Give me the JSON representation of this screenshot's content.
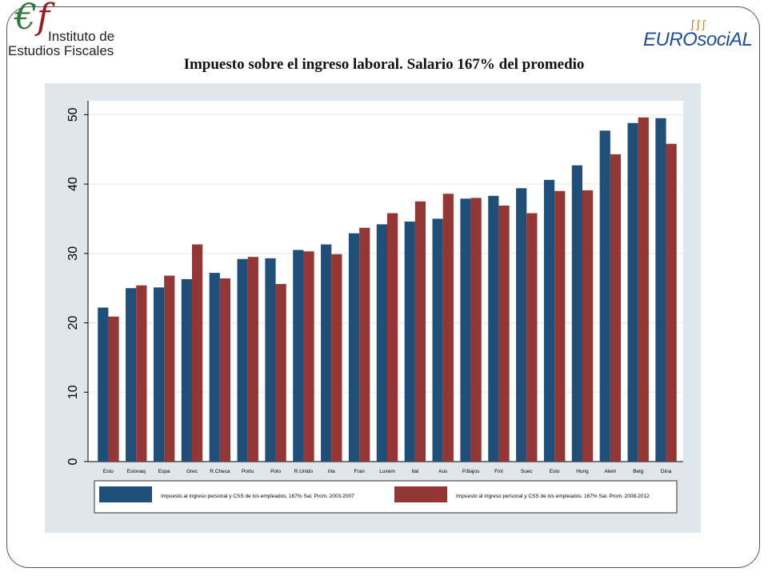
{
  "header": {
    "org_logo_text": [
      "Instituto de",
      "Estudios Fiscales"
    ],
    "partner_logo_text": "EUROsociAL"
  },
  "chart_data": {
    "type": "bar",
    "title": "Impuesto sobre el ingreso laboral. Salario 167% del promedio",
    "xlabel": "",
    "ylabel": "",
    "ylim": [
      0,
      52
    ],
    "yticks": [
      0,
      10,
      20,
      30,
      40,
      50
    ],
    "grid": true,
    "legend_position": "bottom",
    "categories": [
      "Esto",
      "Eslovaq",
      "Espa",
      "Grec",
      "R.Checa",
      "Portu",
      "Polo",
      "R.Unido",
      "Irla",
      "Fran",
      "Luxem",
      "Ital",
      "Aus",
      "P.Bajos",
      "Finl",
      "Suec",
      "Eslo",
      "Hung",
      "Alem",
      "Belg",
      "Dina"
    ],
    "series": [
      {
        "name": "Impuesto al ingreso personal y CSS de los empleados. 167% Sal. Prom. 2003-2007",
        "color": "#1f4e79",
        "values": [
          22.2,
          25.0,
          25.1,
          26.3,
          27.2,
          29.2,
          29.3,
          30.5,
          31.3,
          32.9,
          34.2,
          34.6,
          35.0,
          37.9,
          38.3,
          39.4,
          40.6,
          42.7,
          47.7,
          48.8,
          49.5
        ]
      },
      {
        "name": "Impuesto al ingreso personal y CSS de los empleados. 167% Sal. Prom. 2008-2012",
        "color": "#943634",
        "values": [
          20.9,
          25.4,
          26.8,
          31.3,
          26.4,
          29.5,
          25.6,
          30.3,
          29.9,
          33.7,
          35.8,
          37.5,
          38.6,
          38.0,
          36.9,
          35.8,
          39.0,
          39.1,
          44.3,
          49.6,
          45.8
        ]
      }
    ]
  }
}
